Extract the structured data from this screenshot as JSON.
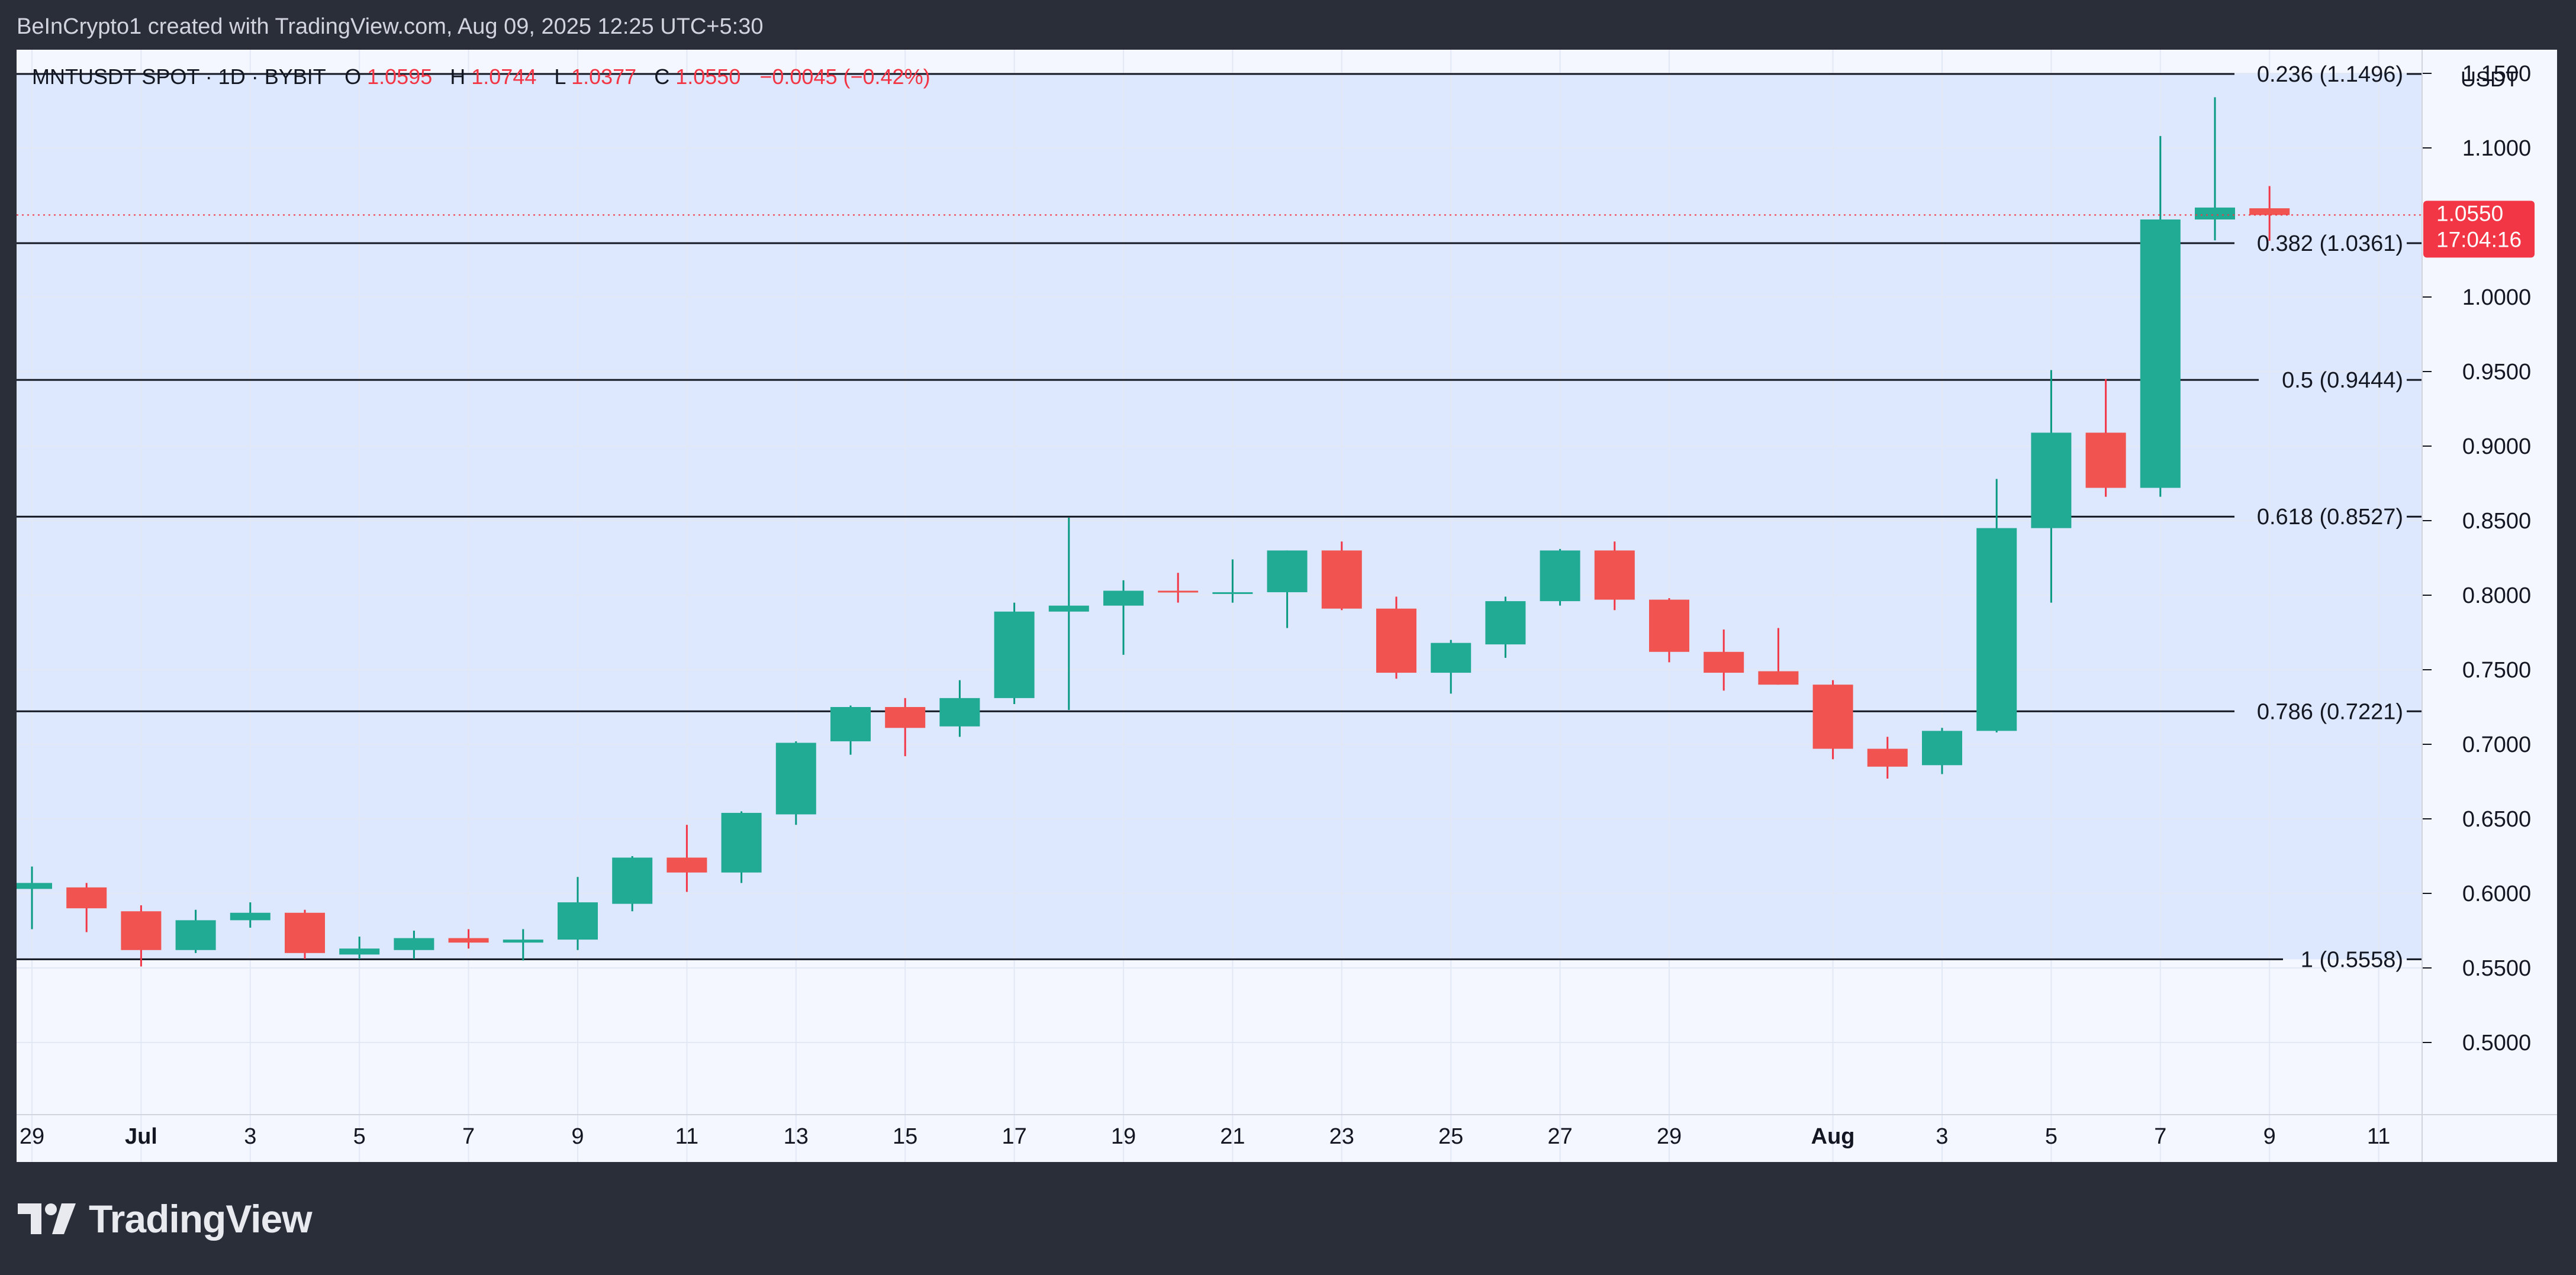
{
  "header": {
    "attribution": "BeInCrypto1 created with TradingView.com, Aug 09, 2025 12:25 UTC+5:30"
  },
  "legend": {
    "symbol": "MNTUSDT SPOT · 1D · BYBIT",
    "o_label": "O",
    "o_value": "1.0595",
    "h_label": "H",
    "h_value": "1.0744",
    "l_label": "L",
    "l_value": "1.0377",
    "c_label": "C",
    "c_value": "1.0550",
    "change": "−0.0045 (−0.42%)"
  },
  "price_axis": {
    "unit": "USDT",
    "last_price": "1.0550",
    "countdown": "17:04:16"
  },
  "footer": {
    "brand": "TradingView"
  },
  "colors": {
    "up": "#089981",
    "up_fill": "#22ab94",
    "down": "#f23645",
    "down_fill": "#f05350",
    "badge": "#f23645",
    "text": "#131722",
    "grid": "#e3e8f5"
  },
  "icons": {
    "logo": "tradingview-logo-icon"
  },
  "chart_data": {
    "type": "candlestick",
    "ylim": [
      0.48,
      1.2
    ],
    "y_ticks": [
      {
        "value": 0.5,
        "label": "0.5000"
      },
      {
        "value": 0.55,
        "label": "0.5500"
      },
      {
        "value": 0.6,
        "label": "0.6000"
      },
      {
        "value": 0.65,
        "label": "0.6500"
      },
      {
        "value": 0.7,
        "label": "0.7000"
      },
      {
        "value": 0.75,
        "label": "0.7500"
      },
      {
        "value": 0.8,
        "label": "0.8000"
      },
      {
        "value": 0.85,
        "label": "0.8500"
      },
      {
        "value": 0.9,
        "label": "0.9000"
      },
      {
        "value": 0.95,
        "label": "0.9500"
      },
      {
        "value": 1.0,
        "label": "1.0000"
      },
      {
        "value": 1.1,
        "label": "1.1000"
      },
      {
        "value": 1.15,
        "label": "1.1500"
      }
    ],
    "x_ticks": [
      {
        "date": "2025-06-29",
        "label": "29",
        "bold": false
      },
      {
        "date": "2025-07-01",
        "label": "Jul",
        "bold": true
      },
      {
        "date": "2025-07-03",
        "label": "3",
        "bold": false
      },
      {
        "date": "2025-07-05",
        "label": "5",
        "bold": false
      },
      {
        "date": "2025-07-07",
        "label": "7",
        "bold": false
      },
      {
        "date": "2025-07-09",
        "label": "9",
        "bold": false
      },
      {
        "date": "2025-07-11",
        "label": "11",
        "bold": false
      },
      {
        "date": "2025-07-13",
        "label": "13",
        "bold": false
      },
      {
        "date": "2025-07-15",
        "label": "15",
        "bold": false
      },
      {
        "date": "2025-07-17",
        "label": "17",
        "bold": false
      },
      {
        "date": "2025-07-19",
        "label": "19",
        "bold": false
      },
      {
        "date": "2025-07-21",
        "label": "21",
        "bold": false
      },
      {
        "date": "2025-07-23",
        "label": "23",
        "bold": false
      },
      {
        "date": "2025-07-25",
        "label": "25",
        "bold": false
      },
      {
        "date": "2025-07-27",
        "label": "27",
        "bold": false
      },
      {
        "date": "2025-07-29",
        "label": "29",
        "bold": false
      },
      {
        "date": "2025-08-01",
        "label": "Aug",
        "bold": true
      },
      {
        "date": "2025-08-03",
        "label": "3",
        "bold": false
      },
      {
        "date": "2025-08-05",
        "label": "5",
        "bold": false
      },
      {
        "date": "2025-08-07",
        "label": "7",
        "bold": false
      },
      {
        "date": "2025-08-09",
        "label": "9",
        "bold": false
      },
      {
        "date": "2025-08-11",
        "label": "11",
        "bold": false
      }
    ],
    "fib_levels": [
      {
        "value": 1.1496,
        "label": "0.236 (1.1496)"
      },
      {
        "value": 1.0361,
        "label": "0.382 (1.0361)"
      },
      {
        "value": 0.9444,
        "label": "0.5 (0.9444)"
      },
      {
        "value": 0.8527,
        "label": "0.618 (0.8527)"
      },
      {
        "value": 0.7221,
        "label": "0.786 (0.7221)"
      },
      {
        "value": 0.5558,
        "label": "1 (0.5558)"
      }
    ],
    "candles": [
      {
        "date": "2025-06-29",
        "o": 0.603,
        "h": 0.618,
        "l": 0.576,
        "c": 0.607
      },
      {
        "date": "2025-06-30",
        "o": 0.604,
        "h": 0.607,
        "l": 0.574,
        "c": 0.59
      },
      {
        "date": "2025-07-01",
        "o": 0.588,
        "h": 0.592,
        "l": 0.551,
        "c": 0.562
      },
      {
        "date": "2025-07-02",
        "o": 0.562,
        "h": 0.589,
        "l": 0.56,
        "c": 0.582
      },
      {
        "date": "2025-07-03",
        "o": 0.582,
        "h": 0.594,
        "l": 0.577,
        "c": 0.587
      },
      {
        "date": "2025-07-04",
        "o": 0.587,
        "h": 0.589,
        "l": 0.556,
        "c": 0.56
      },
      {
        "date": "2025-07-05",
        "o": 0.559,
        "h": 0.571,
        "l": 0.556,
        "c": 0.563
      },
      {
        "date": "2025-07-06",
        "o": 0.562,
        "h": 0.575,
        "l": 0.556,
        "c": 0.57
      },
      {
        "date": "2025-07-07",
        "o": 0.57,
        "h": 0.576,
        "l": 0.563,
        "c": 0.567
      },
      {
        "date": "2025-07-08",
        "o": 0.567,
        "h": 0.576,
        "l": 0.555,
        "c": 0.569
      },
      {
        "date": "2025-07-09",
        "o": 0.569,
        "h": 0.611,
        "l": 0.562,
        "c": 0.594
      },
      {
        "date": "2025-07-10",
        "o": 0.593,
        "h": 0.625,
        "l": 0.588,
        "c": 0.624
      },
      {
        "date": "2025-07-11",
        "o": 0.624,
        "h": 0.646,
        "l": 0.601,
        "c": 0.614
      },
      {
        "date": "2025-07-12",
        "o": 0.614,
        "h": 0.655,
        "l": 0.607,
        "c": 0.654
      },
      {
        "date": "2025-07-13",
        "o": 0.653,
        "h": 0.702,
        "l": 0.646,
        "c": 0.701
      },
      {
        "date": "2025-07-14",
        "o": 0.702,
        "h": 0.726,
        "l": 0.693,
        "c": 0.725
      },
      {
        "date": "2025-07-15",
        "o": 0.725,
        "h": 0.731,
        "l": 0.692,
        "c": 0.711
      },
      {
        "date": "2025-07-16",
        "o": 0.712,
        "h": 0.743,
        "l": 0.705,
        "c": 0.731
      },
      {
        "date": "2025-07-17",
        "o": 0.731,
        "h": 0.795,
        "l": 0.727,
        "c": 0.789
      },
      {
        "date": "2025-07-18",
        "o": 0.789,
        "h": 0.852,
        "l": 0.723,
        "c": 0.793
      },
      {
        "date": "2025-07-19",
        "o": 0.793,
        "h": 0.81,
        "l": 0.76,
        "c": 0.803
      },
      {
        "date": "2025-07-20",
        "o": 0.803,
        "h": 0.815,
        "l": 0.795,
        "c": 0.802
      },
      {
        "date": "2025-07-21",
        "o": 0.802,
        "h": 0.824,
        "l": 0.795,
        "c": 0.802
      },
      {
        "date": "2025-07-22",
        "o": 0.802,
        "h": 0.83,
        "l": 0.778,
        "c": 0.83
      },
      {
        "date": "2025-07-23",
        "o": 0.83,
        "h": 0.836,
        "l": 0.79,
        "c": 0.791
      },
      {
        "date": "2025-07-24",
        "o": 0.791,
        "h": 0.799,
        "l": 0.744,
        "c": 0.748
      },
      {
        "date": "2025-07-25",
        "o": 0.748,
        "h": 0.77,
        "l": 0.734,
        "c": 0.768
      },
      {
        "date": "2025-07-26",
        "o": 0.767,
        "h": 0.799,
        "l": 0.758,
        "c": 0.796
      },
      {
        "date": "2025-07-27",
        "o": 0.796,
        "h": 0.831,
        "l": 0.793,
        "c": 0.83
      },
      {
        "date": "2025-07-28",
        "o": 0.83,
        "h": 0.836,
        "l": 0.79,
        "c": 0.797
      },
      {
        "date": "2025-07-29",
        "o": 0.797,
        "h": 0.798,
        "l": 0.755,
        "c": 0.762
      },
      {
        "date": "2025-07-30",
        "o": 0.762,
        "h": 0.777,
        "l": 0.736,
        "c": 0.748
      },
      {
        "date": "2025-07-31",
        "o": 0.749,
        "h": 0.778,
        "l": 0.74,
        "c": 0.74
      },
      {
        "date": "2025-08-01",
        "o": 0.74,
        "h": 0.743,
        "l": 0.69,
        "c": 0.697
      },
      {
        "date": "2025-08-02",
        "o": 0.697,
        "h": 0.705,
        "l": 0.677,
        "c": 0.685
      },
      {
        "date": "2025-08-03",
        "o": 0.686,
        "h": 0.711,
        "l": 0.68,
        "c": 0.709
      },
      {
        "date": "2025-08-04",
        "o": 0.709,
        "h": 0.878,
        "l": 0.708,
        "c": 0.845
      },
      {
        "date": "2025-08-05",
        "o": 0.845,
        "h": 0.951,
        "l": 0.795,
        "c": 0.909
      },
      {
        "date": "2025-08-06",
        "o": 0.909,
        "h": 0.945,
        "l": 0.866,
        "c": 0.872
      },
      {
        "date": "2025-08-07",
        "o": 0.872,
        "h": 1.108,
        "l": 0.866,
        "c": 1.052
      },
      {
        "date": "2025-08-08",
        "o": 1.052,
        "h": 1.134,
        "l": 1.038,
        "c": 1.06
      },
      {
        "date": "2025-08-09",
        "o": 1.0595,
        "h": 1.0744,
        "l": 1.0377,
        "c": 1.055
      }
    ]
  }
}
